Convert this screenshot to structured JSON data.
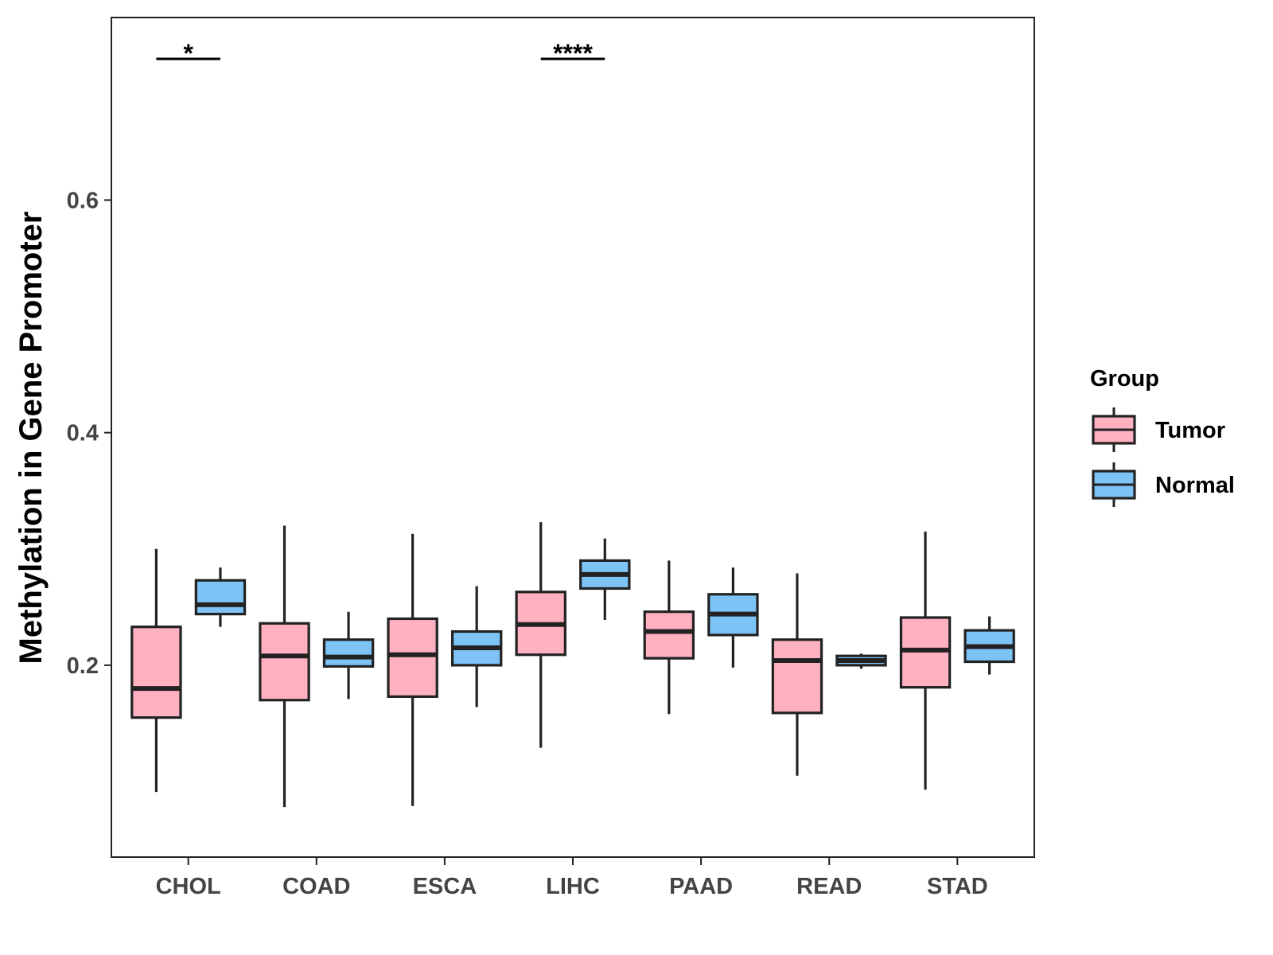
{
  "chart_data": {
    "type": "boxplot",
    "title": "",
    "xlabel": "",
    "ylabel": "Methylation in Gene Promoter",
    "ylim": [
      0.035,
      0.757
    ],
    "yticks": [
      0.2,
      0.4,
      0.6
    ],
    "ytick_labels": [
      "0.2",
      "0.4",
      "0.6"
    ],
    "categories": [
      "CHOL",
      "COAD",
      "ESCA",
      "LIHC",
      "PAAD",
      "READ",
      "STAD"
    ],
    "legend": {
      "title": "Group",
      "position": "right"
    },
    "series": [
      {
        "name": "Tumor",
        "color": "#FFB0C1",
        "boxes": [
          {
            "min": 0.091,
            "q1": 0.155,
            "median": 0.18,
            "q3": 0.233,
            "max": 0.3
          },
          {
            "min": 0.078,
            "q1": 0.17,
            "median": 0.208,
            "q3": 0.236,
            "max": 0.32
          },
          {
            "min": 0.079,
            "q1": 0.173,
            "median": 0.209,
            "q3": 0.24,
            "max": 0.313
          },
          {
            "min": 0.129,
            "q1": 0.209,
            "median": 0.235,
            "q3": 0.263,
            "max": 0.323
          },
          {
            "min": 0.158,
            "q1": 0.206,
            "median": 0.229,
            "q3": 0.246,
            "max": 0.29
          },
          {
            "min": 0.105,
            "q1": 0.159,
            "median": 0.204,
            "q3": 0.222,
            "max": 0.279
          },
          {
            "min": 0.093,
            "q1": 0.181,
            "median": 0.213,
            "q3": 0.241,
            "max": 0.315
          }
        ]
      },
      {
        "name": "Normal",
        "color": "#7EC3F5",
        "boxes": [
          {
            "min": 0.233,
            "q1": 0.244,
            "median": 0.252,
            "q3": 0.273,
            "max": 0.284
          },
          {
            "min": 0.171,
            "q1": 0.199,
            "median": 0.207,
            "q3": 0.222,
            "max": 0.246
          },
          {
            "min": 0.164,
            "q1": 0.2,
            "median": 0.215,
            "q3": 0.229,
            "max": 0.268
          },
          {
            "min": 0.239,
            "q1": 0.266,
            "median": 0.278,
            "q3": 0.29,
            "max": 0.309
          },
          {
            "min": 0.198,
            "q1": 0.226,
            "median": 0.244,
            "q3": 0.261,
            "max": 0.284
          },
          {
            "min": 0.197,
            "q1": 0.2,
            "median": 0.204,
            "q3": 0.208,
            "max": 0.21
          },
          {
            "min": 0.192,
            "q1": 0.203,
            "median": 0.216,
            "q3": 0.23,
            "max": 0.242
          }
        ]
      }
    ],
    "annotations": [
      {
        "category": "CHOL",
        "text": "*"
      },
      {
        "category": "LIHC",
        "text": "****"
      }
    ]
  }
}
